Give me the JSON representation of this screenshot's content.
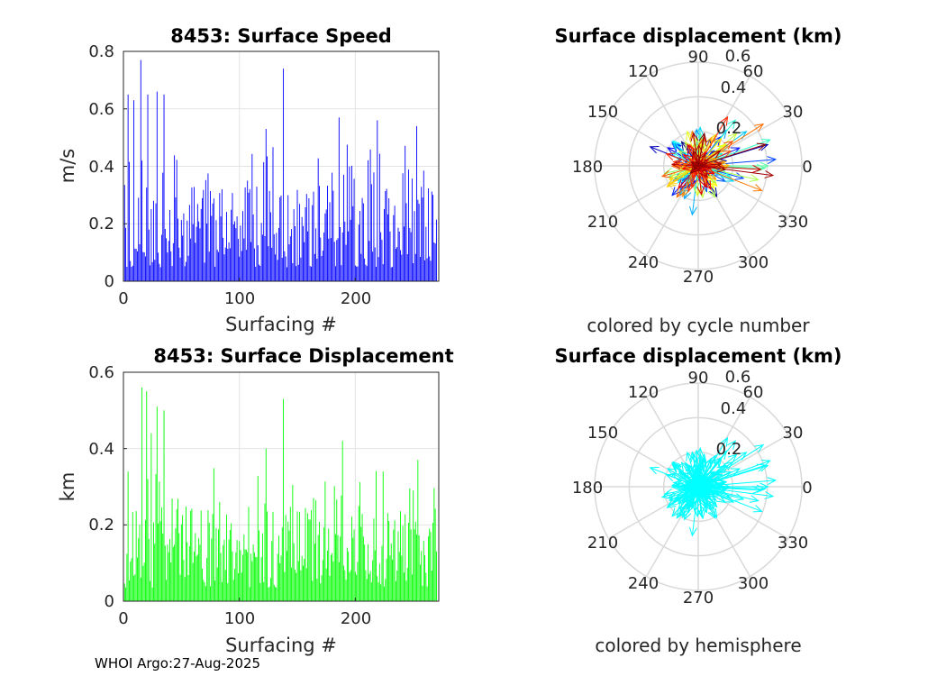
{
  "footer": "WHOI Argo:27-Aug-2025",
  "chart_data": [
    {
      "id": "speed",
      "type": "bar",
      "title": "8453: Surface Speed",
      "xlabel": "Surfacing #",
      "ylabel": "m/s",
      "xlim": [
        0,
        272
      ],
      "ylim": [
        0,
        0.8
      ],
      "xticks": [
        "0",
        "100",
        "200"
      ],
      "yticks": [
        "0",
        "0.2",
        "0.4",
        "0.6",
        "0.8"
      ],
      "color": "#0000ff",
      "grid": true,
      "n": 270,
      "peaks": [
        {
          "x": 4,
          "y": 0.65
        },
        {
          "x": 9,
          "y": 0.63
        },
        {
          "x": 15,
          "y": 0.77
        },
        {
          "x": 21,
          "y": 0.65
        },
        {
          "x": 29,
          "y": 0.66
        },
        {
          "x": 35,
          "y": 0.65
        },
        {
          "x": 123,
          "y": 0.53
        },
        {
          "x": 138,
          "y": 0.74
        },
        {
          "x": 186,
          "y": 0.57
        },
        {
          "x": 219,
          "y": 0.56
        },
        {
          "x": 253,
          "y": 0.54
        }
      ]
    },
    {
      "id": "displacement",
      "type": "bar",
      "title": "8453: Surface Displacement",
      "xlabel": "Surfacing #",
      "ylabel": "km",
      "xlim": [
        0,
        272
      ],
      "ylim": [
        0,
        0.6
      ],
      "xticks": [
        "0",
        "100",
        "200"
      ],
      "yticks": [
        "0",
        "0.2",
        "0.4",
        "0.6"
      ],
      "color": "#00ff00",
      "grid": true,
      "n": 270,
      "peaks": [
        {
          "x": 4,
          "y": 0.34
        },
        {
          "x": 16,
          "y": 0.56
        },
        {
          "x": 20,
          "y": 0.55
        },
        {
          "x": 24,
          "y": 0.44
        },
        {
          "x": 29,
          "y": 0.51
        },
        {
          "x": 35,
          "y": 0.5
        },
        {
          "x": 123,
          "y": 0.4
        },
        {
          "x": 138,
          "y": 0.53
        },
        {
          "x": 189,
          "y": 0.42
        },
        {
          "x": 224,
          "y": 0.34
        },
        {
          "x": 254,
          "y": 0.37
        }
      ]
    },
    {
      "id": "polar-cycle",
      "type": "polar-quiver",
      "title": "Surface displacement (km)",
      "subtitle": "colored by cycle number",
      "rmax": 0.6,
      "rticks": [
        "0.2",
        "0.4",
        "0.6"
      ],
      "angle_ticks": [
        "0",
        "30",
        "60",
        "90",
        "120",
        "150",
        "180",
        "210",
        "240",
        "270",
        "300",
        "330"
      ],
      "colormap": "jet",
      "n": 270
    },
    {
      "id": "polar-hemisphere",
      "type": "polar-quiver",
      "title": "Surface displacement (km)",
      "subtitle": "colored by hemisphere",
      "rmax": 0.6,
      "rticks": [
        "0.2",
        "0.4",
        "0.6"
      ],
      "angle_ticks": [
        "0",
        "30",
        "60",
        "90",
        "120",
        "150",
        "180",
        "210",
        "240",
        "270",
        "300",
        "330"
      ],
      "color": "#00ffff",
      "n": 270
    }
  ]
}
